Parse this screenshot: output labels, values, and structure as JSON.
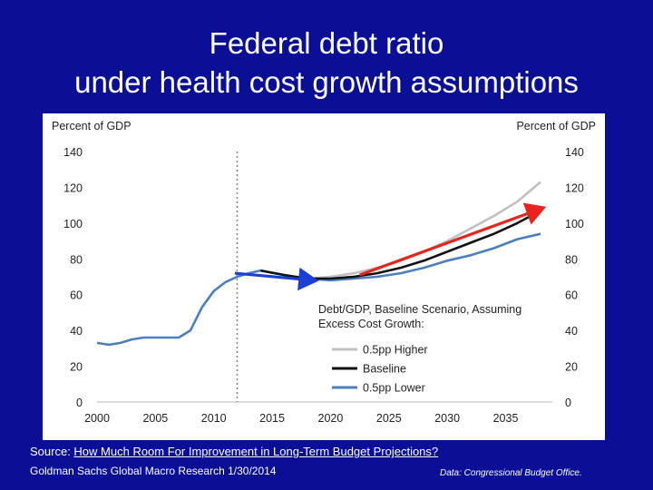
{
  "slide": {
    "title_line1": "Federal debt ratio",
    "title_line2": "under health cost growth assumptions",
    "source_prefix": "Source: ",
    "source_link": "How Much Room For Improvement in Long-Term Budget Projections?",
    "credit": "Goldman Sachs Global Macro Research 1/30/2014",
    "data_note": "Data: Congressional Budget Office."
  },
  "colors": {
    "background": "#0a0f96",
    "higher": "#c0c0c4",
    "baseline": "#111111",
    "lower": "#4a7fc0",
    "blue_arrow": "#1c3fd6",
    "red_arrow": "#e8241c"
  },
  "chart_data": {
    "type": "line",
    "ylabel_left": "Percent of GDP",
    "ylabel_right": "Percent of GDP",
    "ylim": [
      0,
      140
    ],
    "xlim": [
      2000,
      2039
    ],
    "y_ticks": [
      0,
      20,
      40,
      60,
      80,
      100,
      120,
      140
    ],
    "x_ticks": [
      2000,
      2005,
      2010,
      2015,
      2020,
      2025,
      2030,
      2035
    ],
    "projection_start_marker": 2012,
    "legend_title_line1": "Debt/GDP, Baseline Scenario, Assuming",
    "legend_title_line2": "Excess Cost Growth:",
    "history": {
      "name": "Historical",
      "x": [
        2000,
        2001,
        2002,
        2003,
        2004,
        2005,
        2006,
        2007,
        2008,
        2009,
        2010,
        2011,
        2012,
        2013,
        2014
      ],
      "values": [
        33,
        32,
        33,
        35,
        36,
        36,
        36,
        36,
        40,
        53,
        62,
        67,
        70,
        72,
        73.5
      ]
    },
    "series": [
      {
        "name": "0.5pp Higher",
        "key": "higher",
        "x": [
          2014,
          2016,
          2018,
          2020,
          2022,
          2024,
          2026,
          2028,
          2030,
          2032,
          2034,
          2036,
          2038
        ],
        "values": [
          73.5,
          71,
          69,
          70,
          72,
          75,
          79,
          84,
          90,
          97,
          104,
          112,
          123
        ]
      },
      {
        "name": "Baseline",
        "key": "baseline",
        "x": [
          2014,
          2016,
          2018,
          2020,
          2022,
          2024,
          2026,
          2028,
          2030,
          2032,
          2034,
          2036,
          2038
        ],
        "values": [
          73.5,
          71,
          69,
          69,
          70,
          72,
          75,
          79,
          84,
          89,
          94,
          100,
          107
        ]
      },
      {
        "name": "0.5pp Lower",
        "key": "lower",
        "x": [
          2014,
          2016,
          2018,
          2020,
          2022,
          2024,
          2026,
          2028,
          2030,
          2032,
          2034,
          2036,
          2038
        ],
        "values": [
          73.5,
          71,
          69,
          68,
          69,
          70,
          72,
          75,
          79,
          82,
          86,
          91,
          94
        ]
      }
    ],
    "annotations": [
      {
        "name": "blue-arrow",
        "x": [
          2011.8,
          2018.5
        ],
        "values": [
          72,
          68
        ],
        "color_key": "blue_arrow"
      },
      {
        "name": "red-arrow",
        "x": [
          2022.5,
          2038
        ],
        "values": [
          71,
          108
        ],
        "color_key": "red_arrow"
      }
    ]
  }
}
